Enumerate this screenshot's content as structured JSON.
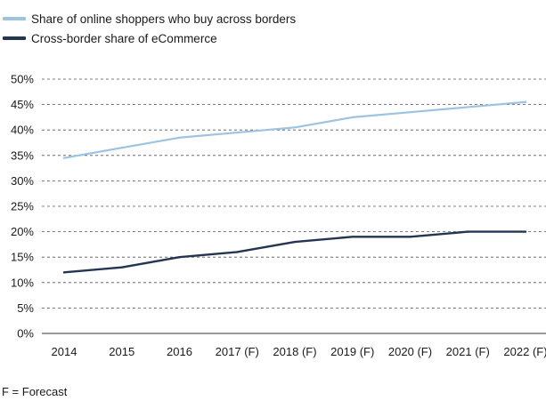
{
  "legend": [
    {
      "label": "Share of online shoppers who buy across borders",
      "color": "#9cc3e2"
    },
    {
      "label": "Cross-border share of eCommerce",
      "color": "#243553"
    }
  ],
  "footnote": "F = Forecast",
  "chart_data": {
    "type": "line",
    "categories": [
      "2014",
      "2015",
      "2016",
      "2017 (F)",
      "2018 (F)",
      "2019 (F)",
      "2020 (F)",
      "2021 (F)",
      "2022 (F)"
    ],
    "series": [
      {
        "name": "Share of online shoppers who buy across borders",
        "color": "#9cc3e2",
        "values": [
          34.5,
          36.5,
          38.5,
          39.5,
          40.5,
          42.5,
          43.5,
          44.5,
          45.5
        ]
      },
      {
        "name": "Cross-border share of eCommerce",
        "color": "#243553",
        "values": [
          12,
          13,
          15,
          16,
          18,
          19,
          19,
          20,
          20
        ]
      }
    ],
    "ylim": [
      0,
      50
    ],
    "yticks": [
      "0%",
      "5%",
      "10%",
      "15%",
      "20%",
      "25%",
      "30%",
      "35%",
      "40%",
      "45%",
      "50%"
    ],
    "grid": true,
    "legend_position": "top-left"
  }
}
